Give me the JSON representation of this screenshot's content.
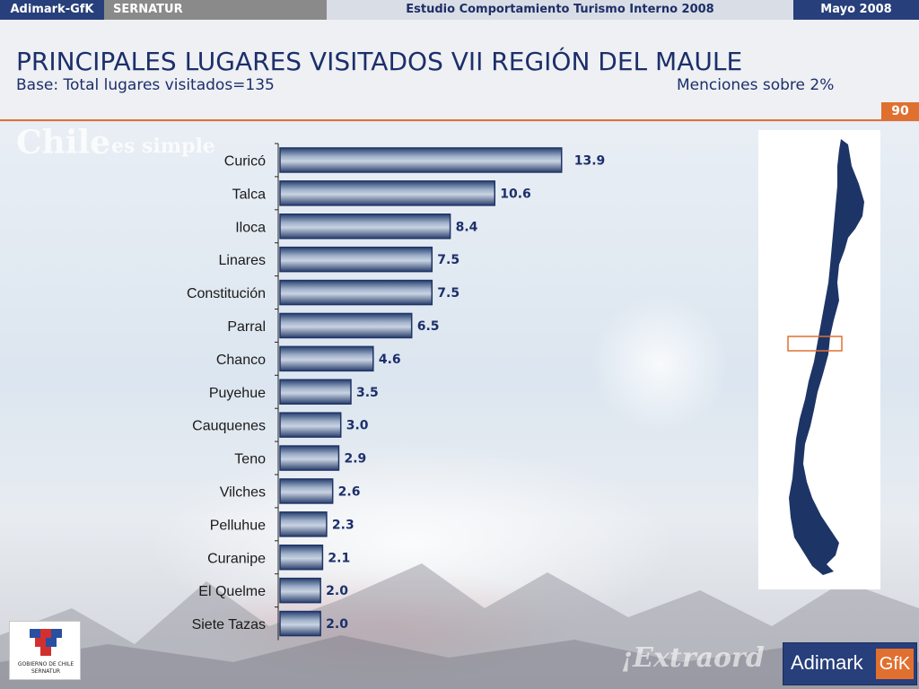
{
  "topbar": {
    "brand": "Adimark-GfK",
    "client": "SERNATUR",
    "study": "Estudio Comportamiento Turismo Interno 2008",
    "date": "Mayo 2008"
  },
  "header": {
    "title": "PRINCIPALES LUGARES VISITADOS VII REGIÓN DEL MAULE",
    "base": "Base: Total lugares visitados=135",
    "note": "Menciones sobre 2%",
    "page_number": "90"
  },
  "chart_data": {
    "type": "bar",
    "orientation": "horizontal",
    "categories": [
      "Curicó",
      "Talca",
      "Iloca",
      "Linares",
      "Constitución",
      "Parral",
      "Chanco",
      "Puyehue",
      "Cauquenes",
      "Teno",
      "Vilches",
      "Pelluhue",
      "Curanipe",
      "El Quelme",
      "Siete Tazas"
    ],
    "values": [
      13.9,
      10.6,
      8.4,
      7.5,
      7.5,
      6.5,
      4.6,
      3.5,
      3.0,
      2.9,
      2.6,
      2.3,
      2.1,
      2.0,
      2.0
    ],
    "value_labels": [
      "13.9",
      "10.6",
      "8.4",
      "7.5",
      "7.5",
      "6.5",
      "4.6",
      "3.5",
      "3.0",
      "2.9",
      "2.6",
      "2.3",
      "2.1",
      "2.0",
      "2.0"
    ],
    "xlim": [
      0,
      14
    ],
    "bar_color": "#1f3468",
    "grid": false
  },
  "map": {
    "highlight_color": "#e07030",
    "land_color": "#1d3566"
  },
  "background_words": {
    "top": "Chile",
    "top_suffix": "es simple",
    "bottom": "¡Extraord"
  },
  "logos": {
    "government": "GOBIERNO DE CHILE",
    "government_sub": "SERNATUR",
    "adimark": "Adimark",
    "gfk": "GfK"
  }
}
